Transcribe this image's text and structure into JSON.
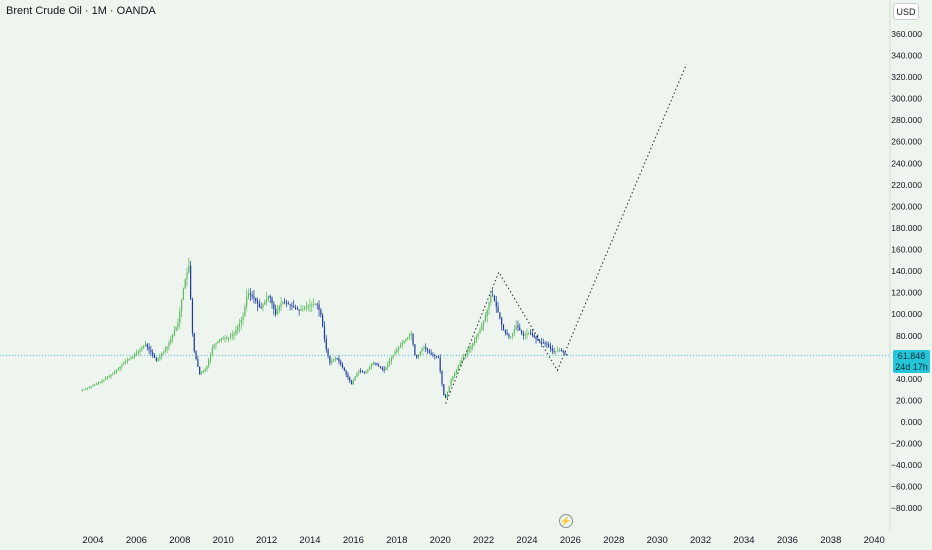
{
  "header": {
    "title": "Brent Crude Oil · 1M · OANDA",
    "currency": "USD"
  },
  "price_tag": {
    "price": "61.848",
    "countdown": "24d 17h"
  },
  "colors": {
    "background": "#edf5ee",
    "up": "#5cb85c",
    "down": "#1a3a9e",
    "price_line": "#26c6da",
    "projection": "#3a3a3a"
  },
  "icons": {
    "lightning": "lightning-icon"
  },
  "chart_data": {
    "type": "line",
    "title": "Brent Crude Oil · 1M · OANDA",
    "xlabel": "",
    "ylabel": "",
    "xlim": [
      2003.3,
      2041
    ],
    "ylim": [
      -98,
      370
    ],
    "grid": false,
    "x_ticks": [
      "2004",
      "2006",
      "2008",
      "2010",
      "2012",
      "2014",
      "2016",
      "2018",
      "2020",
      "2022",
      "2024",
      "2026",
      "2028",
      "2030",
      "2032",
      "2034",
      "2036",
      "2038",
      "2040"
    ],
    "y_ticks": [
      "360.000",
      "340.000",
      "320.000",
      "300.000",
      "280.000",
      "260.000",
      "240.000",
      "220.000",
      "200.000",
      "180.000",
      "160.000",
      "140.000",
      "120.000",
      "100.000",
      "80.000",
      "60.000",
      "40.000",
      "20.000",
      "0.000",
      "−20.000",
      "−40.000",
      "−60.000",
      "−80.000"
    ],
    "current_price": 61.848,
    "series": [
      {
        "x": [
          2003.5,
          2004.0,
          2004.5,
          2005.0,
          2005.5,
          2006.0,
          2006.5,
          2007.0,
          2007.5,
          2008.0,
          2008.3,
          2008.5,
          2008.7,
          2009.0,
          2009.3,
          2009.6,
          2010.0,
          2010.3,
          2010.6,
          2011.0,
          2011.2,
          2011.5,
          2011.8,
          2012.2,
          2012.5,
          2012.8,
          2013.2,
          2013.6,
          2014.0,
          2014.4,
          2014.6,
          2014.8,
          2015.0,
          2015.3,
          2015.6,
          2016.0,
          2016.3,
          2016.6,
          2017.0,
          2017.5,
          2018.0,
          2018.4,
          2018.75,
          2018.95,
          2019.3,
          2019.7,
          2020.0,
          2020.2,
          2020.3,
          2020.6,
          2021.0,
          2021.5,
          2021.9,
          2022.2,
          2022.45,
          2022.7,
          2023.0,
          2023.3,
          2023.6,
          2023.9,
          2024.2,
          2024.6,
          2025.0,
          2025.3,
          2025.6,
          2025.9
        ],
        "y": [
          29,
          33,
          38,
          45,
          55,
          62,
          72,
          57,
          70,
          92,
          130,
          145,
          70,
          44,
          50,
          70,
          78,
          78,
          82,
          98,
          120,
          115,
          105,
          118,
          100,
          112,
          108,
          103,
          108,
          110,
          98,
          70,
          55,
          60,
          50,
          35,
          48,
          45,
          55,
          48,
          65,
          75,
          82,
          58,
          70,
          62,
          60,
          30,
          20,
          40,
          55,
          70,
          85,
          100,
          120,
          105,
          85,
          78,
          90,
          80,
          83,
          75,
          72,
          65,
          67,
          61.848
        ]
      }
    ],
    "projection": [
      {
        "x": 2020.25,
        "y": 17
      },
      {
        "x": 2022.7,
        "y": 139
      },
      {
        "x": 2025.4,
        "y": 48
      },
      {
        "x": 2031.35,
        "y": 332
      }
    ]
  }
}
